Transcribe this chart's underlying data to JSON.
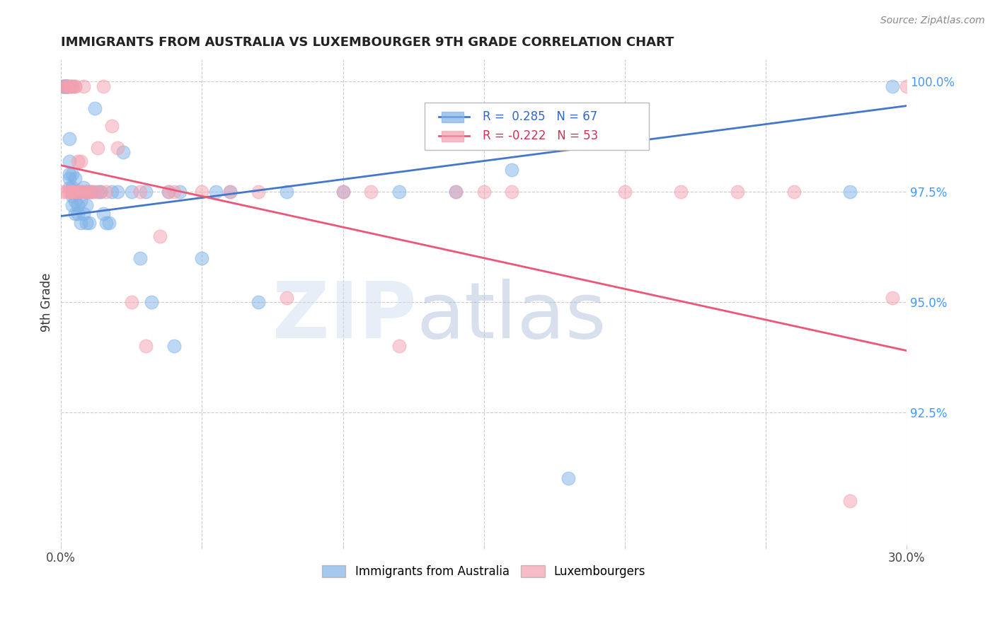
{
  "title": "IMMIGRANTS FROM AUSTRALIA VS LUXEMBOURGER 9TH GRADE CORRELATION CHART",
  "source": "Source: ZipAtlas.com",
  "ylabel": "9th Grade",
  "xlim": [
    0.0,
    0.3
  ],
  "ylim": [
    0.895,
    1.005
  ],
  "xticks": [
    0.0,
    0.05,
    0.1,
    0.15,
    0.2,
    0.25,
    0.3
  ],
  "xticklabels": [
    "0.0%",
    "",
    "",
    "",
    "",
    "",
    "30.0%"
  ],
  "yticks_right": [
    1.0,
    0.975,
    0.95,
    0.925
  ],
  "ytick_right_labels": [
    "100.0%",
    "97.5%",
    "95.0%",
    "92.5%"
  ],
  "grid_color": "#cccccc",
  "background_color": "#ffffff",
  "blue_color": "#7fb3e8",
  "pink_color": "#f4a0b0",
  "blue_line_color": "#4477cc",
  "pink_line_color": "#ee5577",
  "R_blue": 0.285,
  "N_blue": 67,
  "R_pink": -0.222,
  "N_pink": 53,
  "legend_label_blue": "Immigrants from Australia",
  "legend_label_pink": "Luxembourgers",
  "blue_x": [
    0.001,
    0.001,
    0.001,
    0.001,
    0.002,
    0.002,
    0.002,
    0.002,
    0.002,
    0.002,
    0.003,
    0.003,
    0.003,
    0.003,
    0.003,
    0.003,
    0.004,
    0.004,
    0.004,
    0.004,
    0.004,
    0.005,
    0.005,
    0.005,
    0.005,
    0.006,
    0.006,
    0.006,
    0.007,
    0.007,
    0.007,
    0.008,
    0.008,
    0.009,
    0.009,
    0.009,
    0.01,
    0.01,
    0.011,
    0.012,
    0.013,
    0.014,
    0.015,
    0.016,
    0.017,
    0.018,
    0.02,
    0.022,
    0.025,
    0.028,
    0.03,
    0.032,
    0.038,
    0.04,
    0.042,
    0.05,
    0.055,
    0.06,
    0.07,
    0.08,
    0.1,
    0.12,
    0.14,
    0.16,
    0.18,
    0.28,
    0.295
  ],
  "blue_y": [
    0.999,
    0.999,
    0.999,
    0.999,
    0.999,
    0.999,
    0.999,
    0.999,
    0.999,
    0.999,
    0.999,
    0.987,
    0.982,
    0.979,
    0.978,
    0.976,
    0.999,
    0.979,
    0.976,
    0.974,
    0.972,
    0.978,
    0.975,
    0.973,
    0.97,
    0.975,
    0.972,
    0.97,
    0.975,
    0.973,
    0.968,
    0.976,
    0.97,
    0.975,
    0.972,
    0.968,
    0.975,
    0.968,
    0.975,
    0.994,
    0.975,
    0.975,
    0.97,
    0.968,
    0.968,
    0.975,
    0.975,
    0.984,
    0.975,
    0.96,
    0.975,
    0.95,
    0.975,
    0.94,
    0.975,
    0.96,
    0.975,
    0.975,
    0.95,
    0.975,
    0.975,
    0.975,
    0.975,
    0.98,
    0.91,
    0.975,
    0.999
  ],
  "pink_x": [
    0.001,
    0.001,
    0.002,
    0.002,
    0.002,
    0.003,
    0.003,
    0.003,
    0.004,
    0.004,
    0.004,
    0.005,
    0.005,
    0.005,
    0.006,
    0.006,
    0.007,
    0.007,
    0.008,
    0.008,
    0.009,
    0.01,
    0.011,
    0.012,
    0.013,
    0.014,
    0.015,
    0.016,
    0.018,
    0.02,
    0.025,
    0.028,
    0.03,
    0.035,
    0.038,
    0.04,
    0.05,
    0.06,
    0.07,
    0.08,
    0.1,
    0.11,
    0.12,
    0.14,
    0.15,
    0.16,
    0.2,
    0.22,
    0.24,
    0.26,
    0.28,
    0.295,
    0.3
  ],
  "pink_y": [
    0.975,
    0.999,
    0.999,
    0.975,
    0.999,
    0.999,
    0.975,
    0.999,
    0.975,
    0.999,
    0.975,
    0.999,
    0.975,
    0.999,
    0.982,
    0.975,
    0.982,
    0.975,
    0.999,
    0.975,
    0.975,
    0.975,
    0.975,
    0.975,
    0.985,
    0.975,
    0.999,
    0.975,
    0.99,
    0.985,
    0.95,
    0.975,
    0.94,
    0.965,
    0.975,
    0.975,
    0.975,
    0.975,
    0.975,
    0.951,
    0.975,
    0.975,
    0.94,
    0.975,
    0.975,
    0.975,
    0.975,
    0.975,
    0.975,
    0.975,
    0.905,
    0.951,
    0.999
  ],
  "blue_trend_x": [
    0.0,
    0.3
  ],
  "blue_trend_y": [
    0.9695,
    0.9945
  ],
  "pink_trend_x": [
    0.0,
    0.3
  ],
  "pink_trend_y": [
    0.981,
    0.939
  ]
}
